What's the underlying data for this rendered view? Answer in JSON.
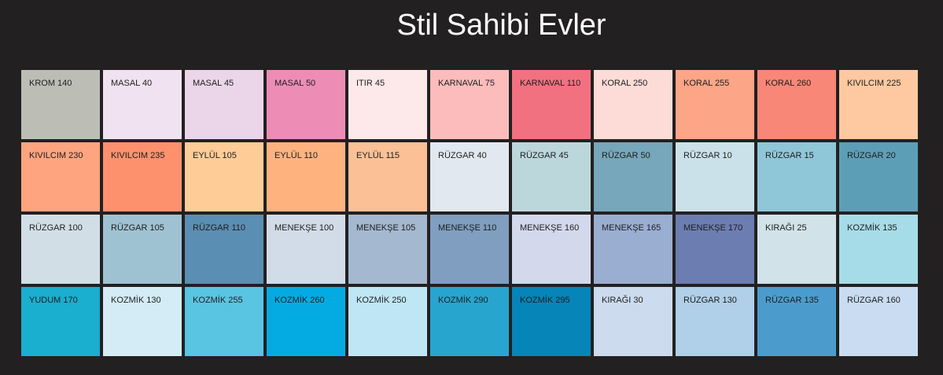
{
  "header": {
    "title": "Stil Sahibi Evler"
  },
  "swatches": [
    {
      "name": "KROM 140",
      "color": "#bcbeb5"
    },
    {
      "name": "MASAL 40",
      "color": "#f0e2f0"
    },
    {
      "name": "MASAL 45",
      "color": "#ebd5e9"
    },
    {
      "name": "MASAL 50",
      "color": "#ed8db5"
    },
    {
      "name": "ITIR 45",
      "color": "#fde9ea"
    },
    {
      "name": "KARNAVAL 75",
      "color": "#fcbcbc"
    },
    {
      "name": "KARNAVAL 110",
      "color": "#f27181"
    },
    {
      "name": "KORAL 250",
      "color": "#fddcd7"
    },
    {
      "name": "KORAL 255",
      "color": "#fca587"
    },
    {
      "name": "KORAL 260",
      "color": "#f98777"
    },
    {
      "name": "KIVILCIM 225",
      "color": "#fec9a0"
    },
    {
      "name": "KIVILCIM 230",
      "color": "#fea47f"
    },
    {
      "name": "KIVILCIM 235",
      "color": "#fd916e"
    },
    {
      "name": "EYLÜL 105",
      "color": "#fecc96"
    },
    {
      "name": "EYLÜL 110",
      "color": "#feb37f"
    },
    {
      "name": "EYLÜL 115",
      "color": "#fbc095"
    },
    {
      "name": "RÜZGAR 40",
      "color": "#e1e8ef"
    },
    {
      "name": "RÜZGAR 45",
      "color": "#bcd7dc"
    },
    {
      "name": "RÜZGAR 50",
      "color": "#76a7ba"
    },
    {
      "name": "RÜZGAR 10",
      "color": "#cbe1e9"
    },
    {
      "name": "RÜZGAR 15",
      "color": "#8fc6d8"
    },
    {
      "name": "RÜZGAR 20",
      "color": "#5d9eb7"
    },
    {
      "name": "RÜZGAR 100",
      "color": "#d2dee6"
    },
    {
      "name": "RÜZGAR 105",
      "color": "#9fc2d2"
    },
    {
      "name": "RÜZGAR 110",
      "color": "#5b8eb3"
    },
    {
      "name": "MENEKŞE 100",
      "color": "#d2dbe8"
    },
    {
      "name": "MENEKŞE 105",
      "color": "#a4b8cf"
    },
    {
      "name": "MENEKŞE 110",
      "color": "#7f9ec0"
    },
    {
      "name": "MENEKŞE 160",
      "color": "#d4d8ec"
    },
    {
      "name": "MENEKŞE 165",
      "color": "#9aaed2"
    },
    {
      "name": "MENEKŞE 170",
      "color": "#6c7db2"
    },
    {
      "name": "KIRAĞI 25",
      "color": "#d1e2e9"
    },
    {
      "name": "KOZMİK 135",
      "color": "#a6dce7"
    },
    {
      "name": "YUDUM 170",
      "color": "#1aaecf"
    },
    {
      "name": "KOZMİK 130",
      "color": "#d3ecf6"
    },
    {
      "name": "KOZMİK 255",
      "color": "#5ac4e3"
    },
    {
      "name": "KOZMİK 260",
      "color": "#04abe3"
    },
    {
      "name": "KOZMİK 250",
      "color": "#bfe6f5"
    },
    {
      "name": "KOZMİK 290",
      "color": "#27a5cf"
    },
    {
      "name": "KOZMİK 295",
      "color": "#0685b9"
    },
    {
      "name": "KIRAĞI 30",
      "color": "#ccdbed"
    },
    {
      "name": "RÜZGAR 130",
      "color": "#b0cfe8"
    },
    {
      "name": "RÜZGAR 135",
      "color": "#4b9ccd"
    },
    {
      "name": "RÜZGAR 160",
      "color": "#c9dcf1"
    }
  ]
}
